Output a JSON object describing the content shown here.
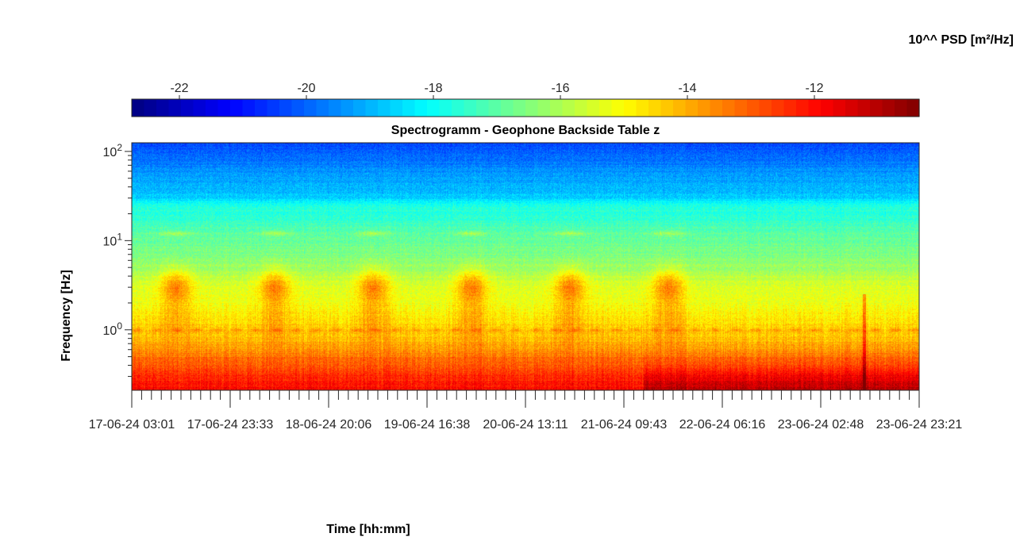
{
  "chart_data": {
    "type": "heatmap",
    "title": "Spectrogramm - Geophone Backside Table z",
    "xlabel": "Time [hh:mm]",
    "ylabel": "Frequency [Hz]",
    "yscale": "log",
    "ylim": [
      0.21,
      125
    ],
    "y_ticks": [
      {
        "value": 1,
        "label_base": "10",
        "label_exp": "0"
      },
      {
        "value": 10,
        "label_base": "10",
        "label_exp": "1"
      },
      {
        "value": 100,
        "label_base": "10",
        "label_exp": "2"
      }
    ],
    "x_tick_labels": [
      "17-06-24  03:01",
      "17-06-24  23:33",
      "18-06-24  20:06",
      "19-06-24  16:38",
      "20-06-24  13:11",
      "21-06-24  09:43",
      "22-06-24  06:16",
      "23-06-24  02:48",
      "23-06-24  23:21"
    ],
    "colorbar": {
      "label": "10^^ PSD [m²/Hz]",
      "range": [
        -22.75,
        -10.35
      ],
      "ticks": [
        -22,
        -20,
        -18,
        -16,
        -14,
        -12
      ],
      "colormap": "jet",
      "levels": 64
    },
    "approx_psd_profile": {
      "frequencies_hz": [
        0.22,
        0.3,
        0.5,
        0.7,
        1,
        2,
        3,
        5,
        8,
        12,
        15,
        20,
        25,
        30,
        50,
        80,
        120
      ],
      "log10_psd": [
        -12,
        -12.4,
        -13.3,
        -14.0,
        -14.4,
        -15.2,
        -15.4,
        -16.2,
        -16.7,
        -17.0,
        -17.3,
        -17.7,
        -17.7,
        -18.7,
        -19.2,
        -19.8,
        -20.3
      ]
    },
    "features": [
      "daily bursts of increased energy around 3 Hz with lines near 12 Hz",
      "persistent line near 1 Hz",
      "stronger low-frequency energy after 21-06-24 09:43",
      "narrow broadband spike near 23-06-24 02:48"
    ]
  }
}
